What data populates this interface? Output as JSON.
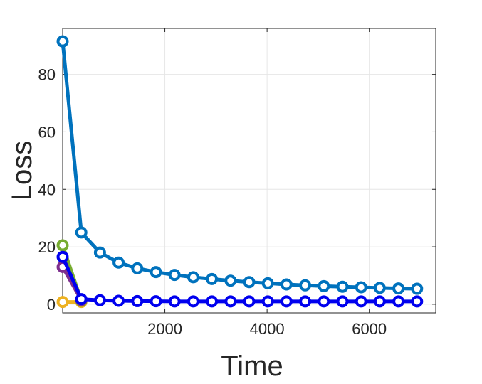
{
  "chart_data": {
    "type": "line",
    "title": "",
    "xlabel": "Time",
    "ylabel": "Loss",
    "xlim": [
      0,
      7300
    ],
    "ylim": [
      -3,
      96
    ],
    "xticks": [
      2000,
      4000,
      6000
    ],
    "yticks": [
      0,
      20,
      40,
      60,
      80
    ],
    "grid": true,
    "legend": "none",
    "marker": "circle-open",
    "series": [
      {
        "color": "#0072BD",
        "x": [
          0,
          365,
          730,
          1095,
          1460,
          1825,
          2190,
          2555,
          2920,
          3285,
          3650,
          4015,
          4380,
          4745,
          5110,
          5475,
          5840,
          6205,
          6570,
          6935
        ],
        "y": [
          91.5,
          25.0,
          18.0,
          14.5,
          12.5,
          11.2,
          10.2,
          9.4,
          8.8,
          8.2,
          7.7,
          7.3,
          6.9,
          6.6,
          6.3,
          6.1,
          5.9,
          5.7,
          5.5,
          5.4
        ]
      },
      {
        "color": "#EDB120",
        "x": [
          0,
          365
        ],
        "y": [
          0.8,
          0.8
        ]
      },
      {
        "color": "#77AC30",
        "x": [
          0,
          365
        ],
        "y": [
          20.5,
          1.2
        ]
      },
      {
        "color": "#7E2F8E",
        "x": [
          0,
          365
        ],
        "y": [
          13.0,
          1.5
        ]
      },
      {
        "color": "#0000EE",
        "x": [
          0,
          365,
          730,
          1095,
          1460,
          1825,
          2190,
          2555,
          2920,
          3285,
          3650,
          4015,
          4380,
          4745,
          5110,
          5475,
          5840,
          6205,
          6570,
          6935
        ],
        "y": [
          16.5,
          1.8,
          1.4,
          1.2,
          1.1,
          1.05,
          1.0,
          1.0,
          1.0,
          1.0,
          1.0,
          1.0,
          1.0,
          1.0,
          1.0,
          1.0,
          1.0,
          1.0,
          1.0,
          1.0
        ]
      }
    ]
  }
}
